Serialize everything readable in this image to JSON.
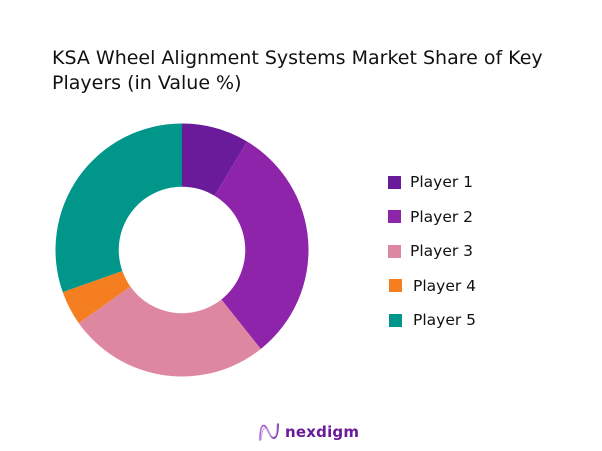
{
  "chart_data": {
    "type": "pie",
    "variant": "donut",
    "title": "KSA Wheel Alignment Systems Market Share of Key Players (in Value %)",
    "title_lines": [
      "KSA Wheel Alignment Systems Market Share of Key",
      "Players (in Value %)"
    ],
    "categories": [
      "Player 1",
      "Player 2",
      "Player 3",
      "Player 4",
      "Player 5"
    ],
    "values": [
      8.6,
      30.7,
      25.9,
      4.4,
      30.4
    ],
    "colors": [
      "#6a1b9a",
      "#8e24aa",
      "#de87a0",
      "#f57f20",
      "#00968a"
    ],
    "start_angle_deg": 0,
    "direction": "clockwise",
    "inner_radius_ratio": 0.5,
    "legend_position": "right",
    "data_labels": false
  },
  "legend": {
    "items": [
      {
        "label": "Player 1",
        "color": "#6a1b9a"
      },
      {
        "label": "Player 2",
        "color": "#8e24aa"
      },
      {
        "label": "Player 3",
        "color": "#de87a0"
      },
      {
        "label": "Player 4",
        "color": "#f57f20"
      },
      {
        "label": "Player 5",
        "color": "#00968a"
      }
    ]
  },
  "branding": {
    "logo_text": "nexdigm",
    "logo_icon": "wave-n-icon",
    "color": "#6a1b9a"
  }
}
